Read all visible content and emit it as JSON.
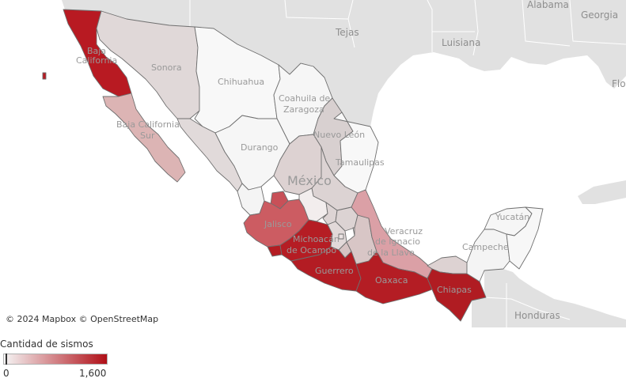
{
  "map": {
    "country_labels": {
      "usa_alabama": "Alabama",
      "usa_georgia": "Georgia",
      "usa_tejas": "Tejas",
      "usa_luisiana": "Luisiana",
      "usa_florida": "Flo",
      "honduras": "Honduras"
    },
    "country_name": "México",
    "state_labels": {
      "sonora": "Sonora",
      "chihuahua": "Chihuahua",
      "coahuila_1": "Coahuila de",
      "coahuila_2": "Zaragoza",
      "nuevo_leon": "Nuevo León",
      "tamaulipas": "Tamaulipas",
      "durango": "Durango",
      "baja_california_1": "Baja",
      "baja_california_2": "California",
      "baja_california_sur_1": "Baja California",
      "baja_california_sur_2": "Sur",
      "jalisco": "Jalisco",
      "michoacan_1": "Michoacán",
      "michoacan_2": "de Ocampo",
      "veracruz_1": "Veracruz",
      "veracruz_2": "de Ignacio",
      "veracruz_3": "de la Llave",
      "guerrero": "Guerrero",
      "oaxaca": "Oaxaca",
      "chiapas": "Chiapas",
      "yucatan": "Yucatán",
      "campeche": "Campeche"
    },
    "attribution_mapbox": "© 2024 Mapbox",
    "attribution_osm": "© OpenStreetMap",
    "colors": {
      "water": "#ffffff",
      "land_other": "#e1e1e1",
      "mexico_low": "#f7f7f7",
      "scale_low": "#f5f5f5",
      "scale_high": "#b00f17"
    }
  },
  "legend": {
    "title": "Cantidad de sismos",
    "min_label": "0",
    "max_label": "1,600"
  }
}
